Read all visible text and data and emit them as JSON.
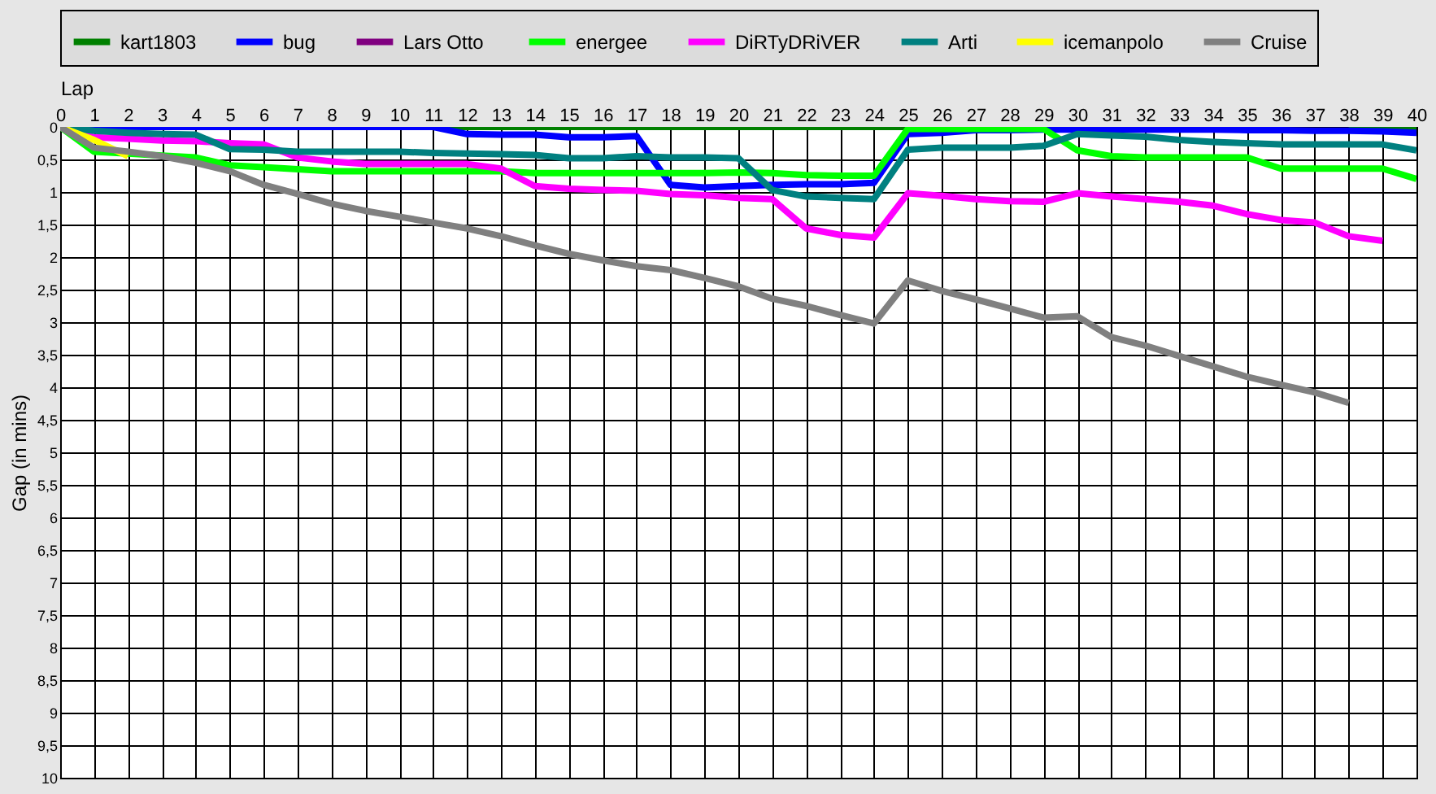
{
  "chart_data": {
    "type": "line",
    "xlabel": "Lap",
    "ylabel": "Gap (in mins)",
    "x": [
      0,
      1,
      2,
      3,
      4,
      5,
      6,
      7,
      8,
      9,
      10,
      11,
      12,
      13,
      14,
      15,
      16,
      17,
      18,
      19,
      20,
      21,
      22,
      23,
      24,
      25,
      26,
      27,
      28,
      29,
      30,
      31,
      32,
      33,
      34,
      35,
      36,
      37,
      38,
      39,
      40
    ],
    "series": [
      {
        "name": "kart1803",
        "color": "#008000",
        "values": [
          0,
          0,
          null,
          null,
          null,
          null,
          null,
          null,
          null,
          null,
          null,
          0,
          0,
          0,
          0,
          0,
          0,
          0,
          0,
          0,
          0,
          0,
          0,
          0,
          0,
          0,
          null,
          null,
          null,
          null,
          null,
          null,
          null,
          null,
          null,
          null,
          null,
          null,
          0,
          0,
          0
        ]
      },
      {
        "name": "bug",
        "color": "#0000ff",
        "values": [
          0,
          0,
          0,
          0,
          0,
          0,
          0,
          0,
          0,
          0,
          0,
          0,
          0.11,
          0.12,
          0.12,
          0.16,
          0.16,
          0.14,
          0.89,
          0.93,
          0.91,
          0.89,
          0.88,
          0.88,
          0.86,
          0.11,
          0.09,
          0.05,
          0.05,
          0.04,
          0.04,
          0.04,
          0.04,
          0.04,
          0.04,
          0.05,
          0.05,
          0.06,
          0.06,
          0.07,
          0.09
        ]
      },
      {
        "name": "Lars  Otto",
        "color": "#800080",
        "values": [
          null,
          null,
          null,
          null,
          null,
          null,
          null,
          null,
          null,
          null,
          null,
          null,
          null,
          null,
          null,
          null,
          null,
          null,
          null,
          null,
          null,
          null,
          null,
          null,
          null,
          null,
          null,
          null,
          null,
          null,
          null,
          null,
          null,
          null,
          null,
          null,
          null,
          null,
          null,
          null,
          null
        ]
      },
      {
        "name": "energee",
        "color": "#00ff00",
        "values": [
          0,
          0.38,
          0.41,
          0.44,
          0.47,
          0.59,
          0.62,
          0.65,
          0.68,
          0.68,
          0.68,
          0.68,
          0.68,
          0.68,
          0.71,
          0.71,
          0.71,
          0.71,
          0.71,
          0.71,
          0.7,
          0.71,
          0.74,
          0.75,
          0.75,
          0.03,
          0.03,
          0.03,
          0.03,
          0.03,
          0.36,
          0.45,
          0.47,
          0.47,
          0.47,
          0.47,
          0.64,
          0.64,
          0.64,
          0.64,
          0.8
        ]
      },
      {
        "name": "DiRTyDRiVER",
        "color": "#ff00ff",
        "values": [
          0,
          0.16,
          0.18,
          0.21,
          0.22,
          0.25,
          0.27,
          0.47,
          0.53,
          0.57,
          0.57,
          0.57,
          0.57,
          0.64,
          0.91,
          0.95,
          0.97,
          0.98,
          1.03,
          1.05,
          1.09,
          1.11,
          1.56,
          1.66,
          1.7,
          1.02,
          1.06,
          1.11,
          1.14,
          1.15,
          1.02,
          1.07,
          1.11,
          1.15,
          1.21,
          1.34,
          1.43,
          1.47,
          1.68,
          1.75,
          null
        ]
      },
      {
        "name": "Arti",
        "color": "#008080",
        "values": [
          0,
          0.06,
          0.09,
          0.11,
          0.12,
          0.34,
          0.35,
          0.38,
          0.38,
          0.38,
          0.38,
          0.4,
          0.41,
          0.42,
          0.43,
          0.48,
          0.48,
          0.45,
          0.47,
          0.47,
          0.48,
          0.97,
          1.07,
          1.09,
          1.11,
          0.35,
          0.32,
          0.32,
          0.32,
          0.29,
          0.11,
          0.13,
          0.15,
          0.2,
          0.23,
          0.25,
          0.27,
          0.27,
          0.27,
          0.27,
          0.36
        ]
      },
      {
        "name": "icemanpolo",
        "color": "#ffff00",
        "x": [
          0,
          1,
          2
        ],
        "values": [
          0,
          0.2,
          0.45
        ]
      },
      {
        "name": "Cruise",
        "color": "#808080",
        "values": [
          0,
          0.32,
          0.38,
          0.45,
          0.55,
          0.68,
          0.89,
          1.03,
          1.18,
          1.29,
          1.38,
          1.47,
          1.56,
          1.68,
          1.82,
          1.95,
          2.05,
          2.14,
          2.2,
          2.32,
          2.45,
          2.64,
          2.75,
          2.89,
          3.02,
          2.36,
          2.52,
          2.65,
          2.79,
          2.93,
          2.91,
          3.23,
          3.36,
          3.52,
          3.68,
          3.84,
          3.96,
          4.08,
          4.24,
          null,
          null
        ]
      }
    ],
    "xlim": [
      0,
      40
    ],
    "xticks": [
      0,
      1,
      2,
      3,
      4,
      5,
      6,
      7,
      8,
      9,
      10,
      11,
      12,
      13,
      14,
      15,
      16,
      17,
      18,
      19,
      20,
      21,
      22,
      23,
      24,
      25,
      26,
      27,
      28,
      29,
      30,
      31,
      32,
      33,
      34,
      35,
      36,
      37,
      38,
      39,
      40
    ],
    "ylim": [
      10,
      0
    ],
    "yticks": [
      0,
      {
        "value": 0.5,
        "label": "0,5"
      },
      1,
      {
        "value": 1.5,
        "label": "1,5"
      },
      2,
      {
        "value": 2.5,
        "label": "2,5"
      },
      3,
      {
        "value": 3.5,
        "label": "3,5"
      },
      4,
      {
        "value": 4.5,
        "label": "4,5"
      },
      5,
      {
        "value": 5.5,
        "label": "5,5"
      },
      6,
      {
        "value": 6.5,
        "label": "6,5"
      },
      7,
      {
        "value": 7.5,
        "label": "7,5"
      },
      8,
      {
        "value": 8.5,
        "label": "8,5"
      },
      9,
      {
        "value": 9.5,
        "label": "9,5"
      },
      10
    ],
    "grid": true,
    "legend": "top",
    "line_style": "solid",
    "marker": "none"
  }
}
